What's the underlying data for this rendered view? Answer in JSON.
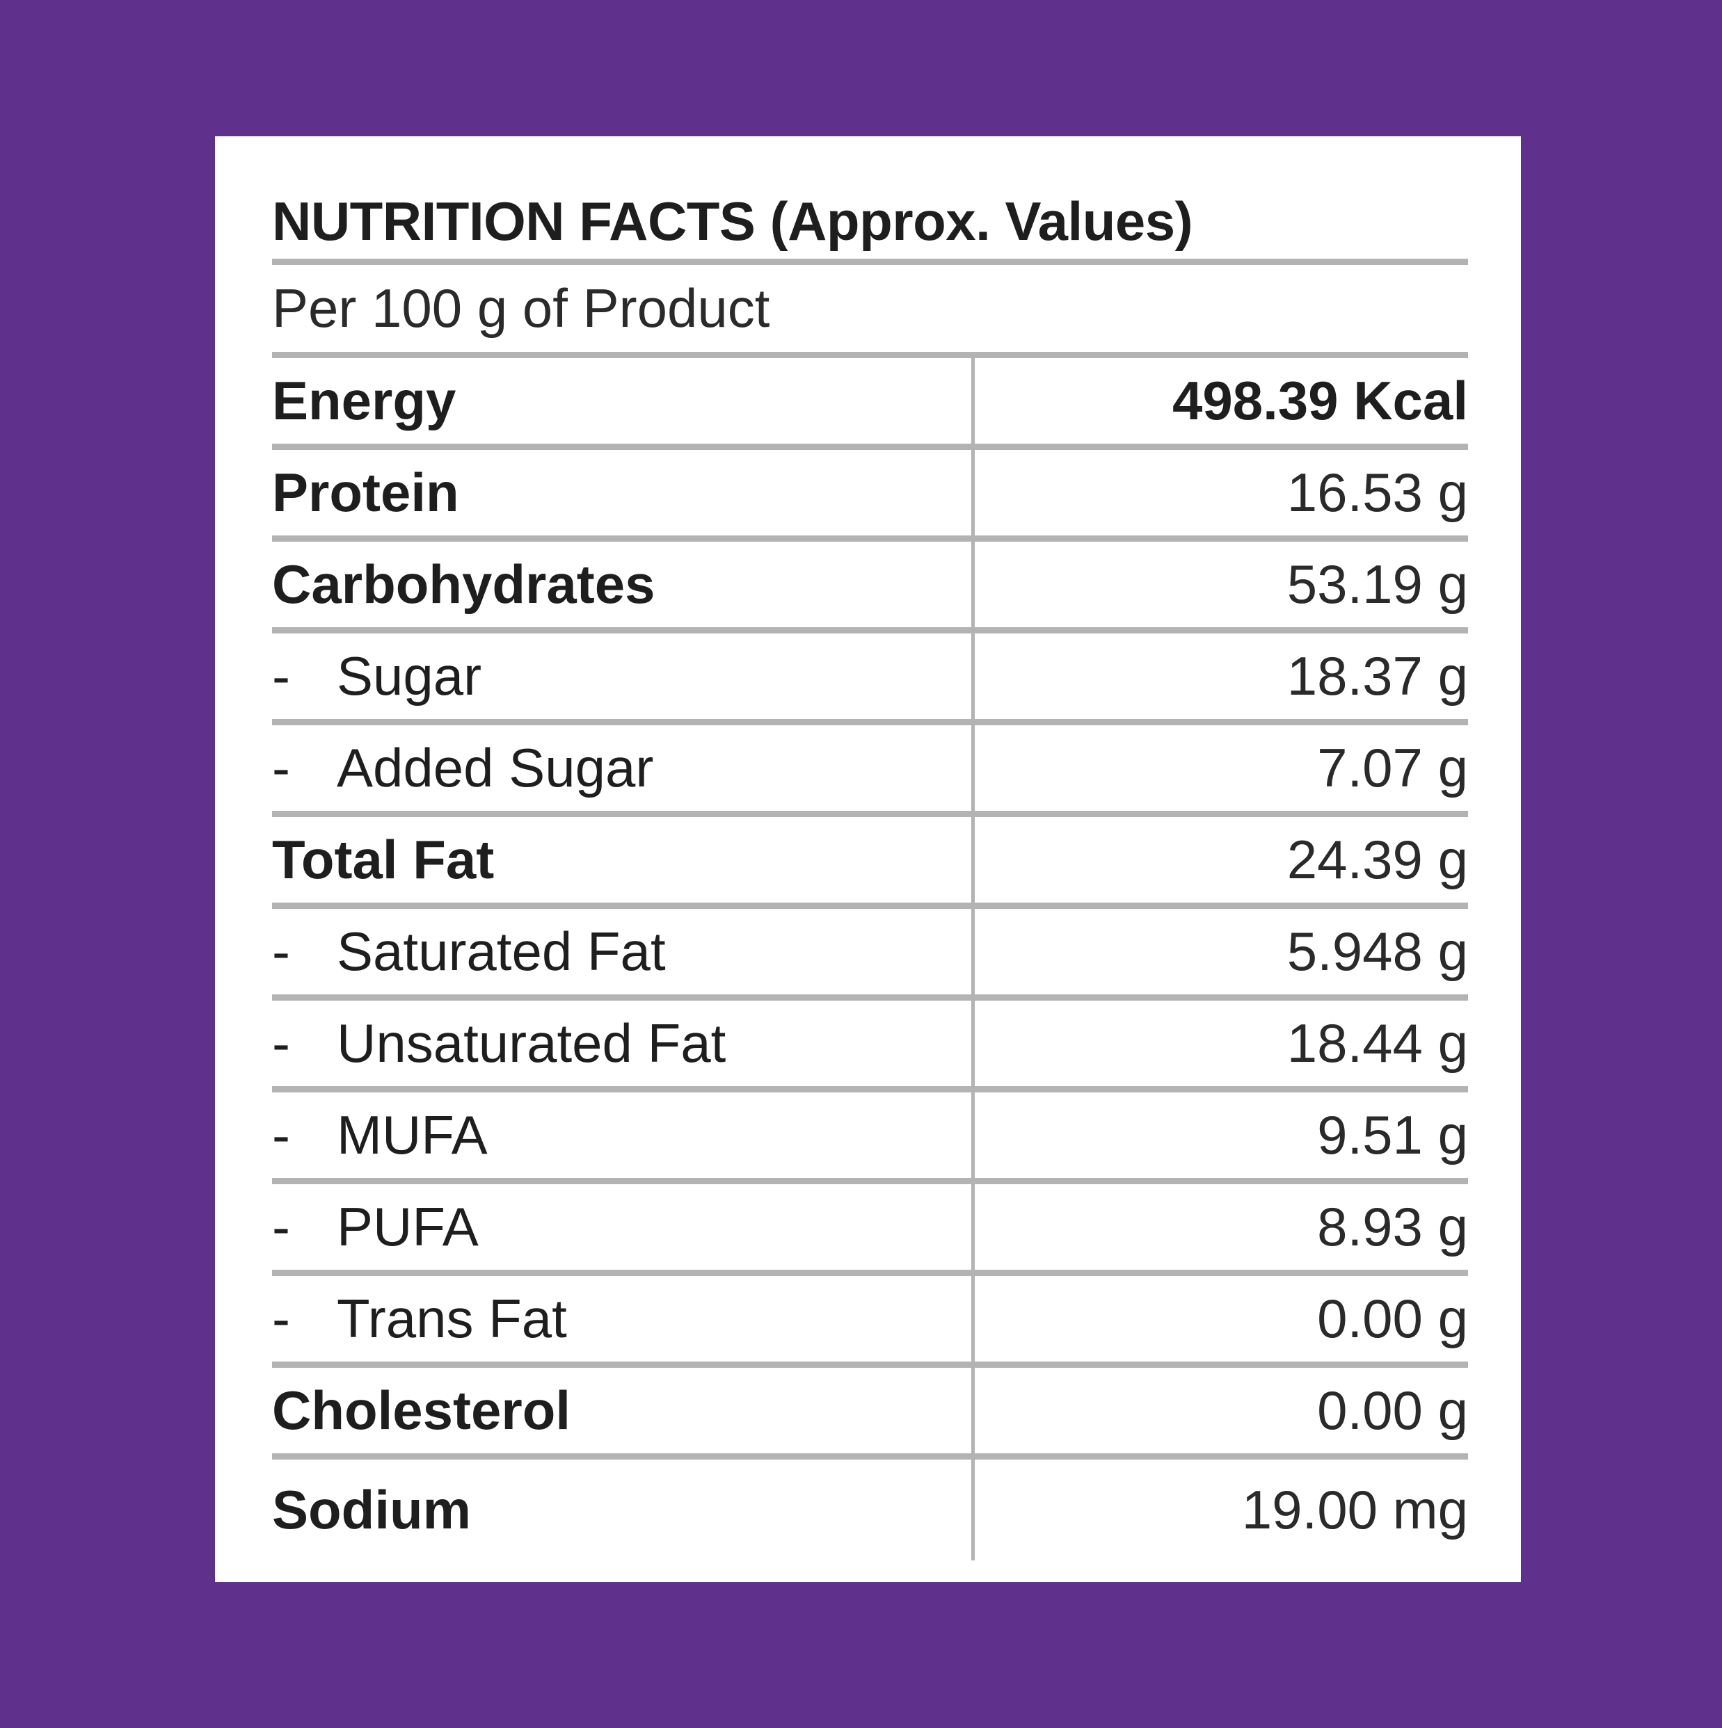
{
  "colors": {
    "background": "#5f318c",
    "card": "#ffffff",
    "rule": "#b3b3b3",
    "text": "#1e1e1e"
  },
  "panel": {
    "title": "NUTRITION FACTS (Approx. Values)",
    "subtitle": "Per 100 g of Product"
  },
  "rows": [
    {
      "dash": "",
      "label": "Energy",
      "value": "498.39 Kcal"
    },
    {
      "dash": "",
      "label": "Protein",
      "value": "16.53 g"
    },
    {
      "dash": "",
      "label": "Carbohydrates",
      "value": "53.19 g"
    },
    {
      "dash": "-",
      "label": "Sugar",
      "value": "18.37 g"
    },
    {
      "dash": "-",
      "label": "Added Sugar",
      "value": "7.07 g"
    },
    {
      "dash": "",
      "label": "Total Fat",
      "value": "24.39 g"
    },
    {
      "dash": "-",
      "label": "Saturated Fat",
      "value": "5.948 g"
    },
    {
      "dash": "-",
      "label": "Unsaturated Fat",
      "value": "18.44 g"
    },
    {
      "dash": "-",
      "label": "MUFA",
      "value": "9.51 g"
    },
    {
      "dash": "-",
      "label": "PUFA",
      "value": "8.93 g"
    },
    {
      "dash": "-",
      "label": "Trans Fat",
      "value": "0.00 g"
    },
    {
      "dash": "",
      "label": "Cholesterol",
      "value": "0.00 g"
    },
    {
      "dash": "",
      "label": "Sodium",
      "value": "19.00 mg"
    }
  ]
}
